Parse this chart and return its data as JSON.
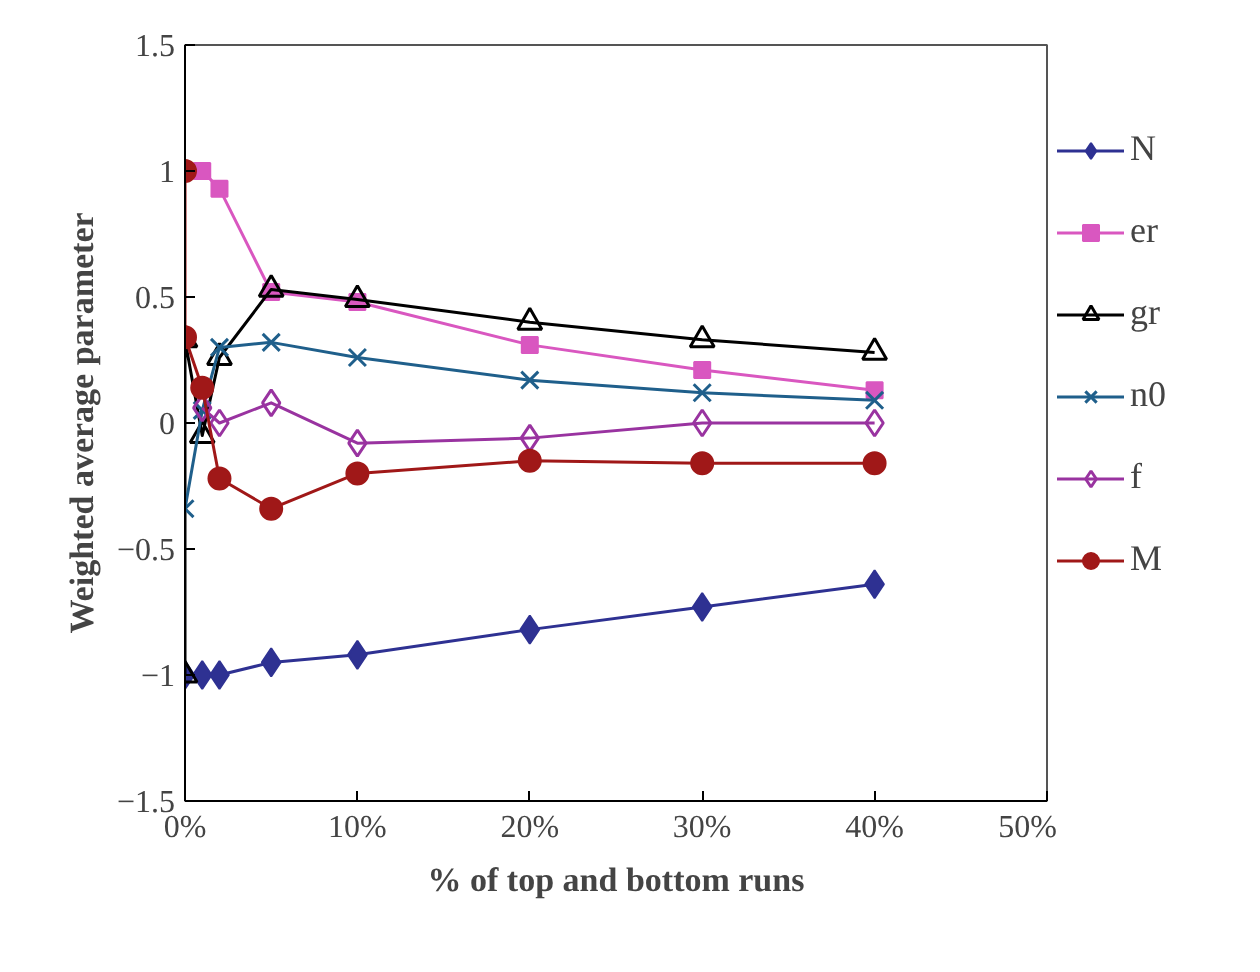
{
  "chart_data": {
    "type": "line",
    "xlabel": "% of top and bottom runs",
    "ylabel": "Weighted average parameter",
    "x": [
      0,
      1,
      2,
      5,
      10,
      20,
      30,
      40
    ],
    "xlim": [
      0,
      50
    ],
    "xticks": [
      {
        "value": 0,
        "label": "0%"
      },
      {
        "value": 10,
        "label": "10%"
      },
      {
        "value": 20,
        "label": "20%"
      },
      {
        "value": 30,
        "label": "30%"
      },
      {
        "value": 40,
        "label": "40%"
      },
      {
        "value": 50,
        "label": "50%"
      }
    ],
    "ylim": [
      -1.5,
      1.5
    ],
    "yticks": [
      -1.5,
      -1,
      -0.5,
      0,
      0.5,
      1,
      1.5
    ],
    "grid": false,
    "legend": "right",
    "series": [
      {
        "name": "N",
        "color": "#2e3192",
        "marker": "diamond",
        "values": [
          -1.0,
          -1.0,
          -1.0,
          -0.95,
          -0.92,
          -0.82,
          -0.73,
          -0.64
        ]
      },
      {
        "name": "er",
        "color": "#d957c0",
        "marker": "square",
        "values": [
          1.0,
          1.0,
          0.93,
          0.52,
          0.48,
          0.31,
          0.21,
          0.13
        ]
      },
      {
        "name": "gr",
        "color": "#000000",
        "marker": "triangle",
        "x": [
          0,
          0,
          1,
          2,
          5,
          10,
          20,
          30,
          40
        ],
        "values": [
          -1.0,
          0.33,
          -0.05,
          0.26,
          0.53,
          0.49,
          0.4,
          0.33,
          0.28
        ]
      },
      {
        "name": "n0",
        "color": "#1f5f8b",
        "marker": "cross",
        "values": [
          -0.34,
          0.05,
          0.3,
          0.32,
          0.26,
          0.17,
          0.12,
          0.09
        ]
      },
      {
        "name": "f",
        "color": "#9933a0",
        "marker": "diamond_open",
        "x": [
          1,
          2,
          5,
          10,
          20,
          30,
          40
        ],
        "values": [
          0.06,
          0.0,
          0.08,
          -0.08,
          -0.06,
          0.0,
          0.0
        ]
      },
      {
        "name": "M",
        "color": "#a01818",
        "marker": "circle",
        "x": [
          0,
          0,
          1,
          2,
          5,
          10,
          20,
          30,
          40
        ],
        "values": [
          1.0,
          0.34,
          0.14,
          -0.22,
          -0.34,
          -0.2,
          -0.15,
          -0.16,
          -0.16
        ]
      }
    ]
  }
}
